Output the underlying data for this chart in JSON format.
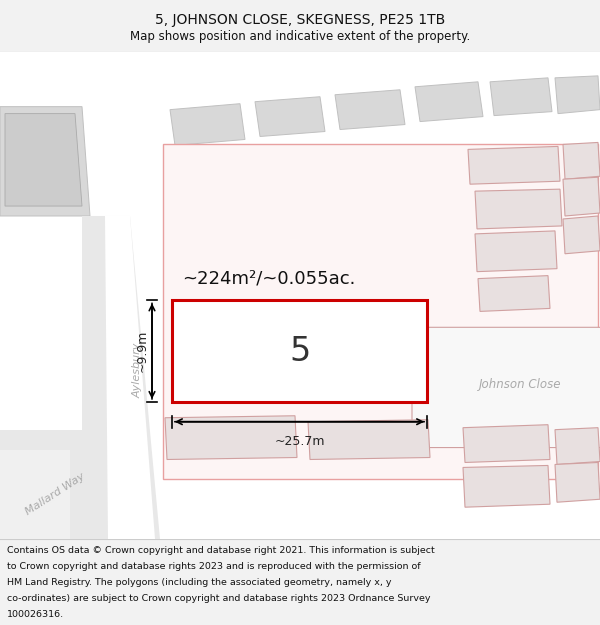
{
  "title": "5, JOHNSON CLOSE, SKEGNESS, PE25 1TB",
  "subtitle": "Map shows position and indicative extent of the property.",
  "footer_line1": "Contains OS data © Crown copyright and database right 2021. This information is subject",
  "footer_line2": "to Crown copyright and database rights 2023 and is reproduced with the permission of",
  "footer_line3": "HM Land Registry. The polygons (including the associated geometry, namely x, y",
  "footer_line4": "co-ordinates) are subject to Crown copyright and database rights 2023 Ordnance Survey",
  "footer_line5": "100026316.",
  "area_text": "~224m²/~0.055ac.",
  "plot_number": "5",
  "width_label": "~25.7m",
  "height_label": "~9.9m",
  "street_aylesbury": "Aylesbury",
  "street_mallard": "Mallard Way",
  "street_johnson": "Johnson Close",
  "bg_color": "#f2f2f2",
  "map_bg": "#ffffff",
  "plot_fill": "#ffffff",
  "plot_edge": "#cc0000",
  "pink_zone_fill": "#fdf5f5",
  "pink_zone_edge": "#e8a0a0",
  "neighbor_fill": "#e8e0e0",
  "neighbor_edge": "#d0a0a0",
  "gray_fill": "#d8d8d8",
  "gray_edge": "#c0c0c0",
  "road_gray": "#e8e8e8",
  "street_color": "#aaaaaa",
  "dim_color": "#222222",
  "title_fontsize": 10,
  "subtitle_fontsize": 8.5,
  "footer_fontsize": 6.8,
  "area_fontsize": 13,
  "number_fontsize": 24,
  "dim_fontsize": 9,
  "street_fontsize": 8
}
